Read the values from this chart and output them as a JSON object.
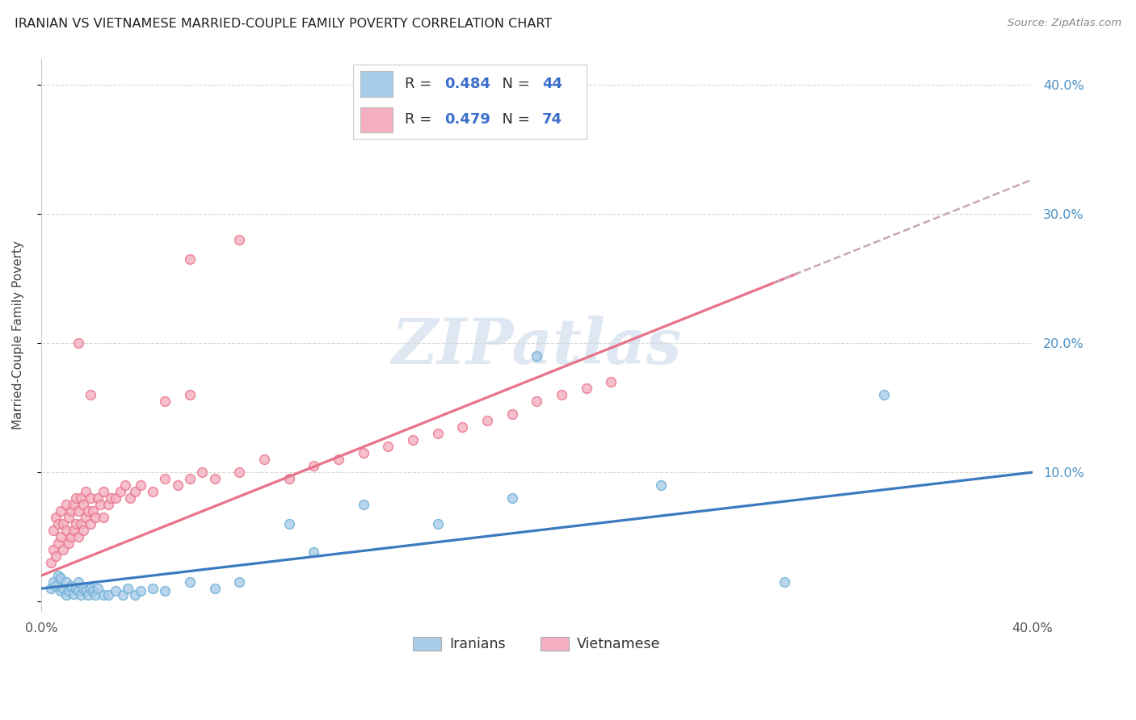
{
  "title": "IRANIAN VS VIETNAMESE MARRIED-COUPLE FAMILY POVERTY CORRELATION CHART",
  "source": "Source: ZipAtlas.com",
  "ylabel": "Married-Couple Family Poverty",
  "xlim": [
    0.0,
    0.4
  ],
  "ylim": [
    -0.008,
    0.42
  ],
  "right_ytick_values": [
    0.0,
    0.1,
    0.2,
    0.3,
    0.4
  ],
  "right_ytick_labels": [
    "",
    "10.0%",
    "20.0%",
    "30.0%",
    "40.0%"
  ],
  "xtick_values": [
    0.0,
    0.1,
    0.2,
    0.3,
    0.4
  ],
  "xtick_labels": [
    "0.0%",
    "",
    "",
    "",
    "40.0%"
  ],
  "iran_color_face": "#a8cce8",
  "iran_color_edge": "#6baed6",
  "iran_line_color": "#3a7abf",
  "viet_color_face": "#f4b0c0",
  "viet_color_edge": "#e8728a",
  "viet_line_color": "#e8728a",
  "viet_line_dashed_color": "#c8a8b8",
  "watermark_color": "#c8d8ea",
  "grid_color": "#d8d8d8",
  "background": "#ffffff",
  "iran_R": "0.484",
  "iran_N": "44",
  "viet_R": "0.479",
  "viet_N": "74",
  "legend_value_color": "#3a6fcc",
  "legend_label_color": "#333333",
  "iran_x": [
    0.004,
    0.005,
    0.006,
    0.007,
    0.008,
    0.008,
    0.009,
    0.01,
    0.01,
    0.011,
    0.012,
    0.013,
    0.014,
    0.015,
    0.015,
    0.016,
    0.017,
    0.018,
    0.019,
    0.02,
    0.021,
    0.022,
    0.023,
    0.025,
    0.027,
    0.03,
    0.033,
    0.035,
    0.038,
    0.04,
    0.045,
    0.05,
    0.06,
    0.07,
    0.08,
    0.1,
    0.11,
    0.13,
    0.16,
    0.19,
    0.2,
    0.25,
    0.3,
    0.34
  ],
  "iran_y": [
    0.01,
    0.015,
    0.012,
    0.02,
    0.008,
    0.018,
    0.01,
    0.005,
    0.015,
    0.008,
    0.012,
    0.006,
    0.01,
    0.008,
    0.015,
    0.005,
    0.01,
    0.008,
    0.005,
    0.01,
    0.008,
    0.005,
    0.01,
    0.005,
    0.005,
    0.008,
    0.005,
    0.01,
    0.005,
    0.008,
    0.01,
    0.008,
    0.015,
    0.01,
    0.015,
    0.06,
    0.038,
    0.075,
    0.06,
    0.08,
    0.19,
    0.09,
    0.015,
    0.16
  ],
  "viet_x": [
    0.004,
    0.005,
    0.005,
    0.006,
    0.006,
    0.007,
    0.007,
    0.008,
    0.008,
    0.009,
    0.009,
    0.01,
    0.01,
    0.011,
    0.011,
    0.012,
    0.012,
    0.013,
    0.013,
    0.014,
    0.014,
    0.015,
    0.015,
    0.016,
    0.016,
    0.017,
    0.017,
    0.018,
    0.018,
    0.019,
    0.02,
    0.02,
    0.021,
    0.022,
    0.023,
    0.024,
    0.025,
    0.025,
    0.027,
    0.028,
    0.03,
    0.032,
    0.034,
    0.036,
    0.038,
    0.04,
    0.045,
    0.05,
    0.055,
    0.06,
    0.065,
    0.07,
    0.08,
    0.09,
    0.1,
    0.11,
    0.12,
    0.13,
    0.14,
    0.15,
    0.16,
    0.17,
    0.18,
    0.19,
    0.2,
    0.21,
    0.22,
    0.23,
    0.05,
    0.06,
    0.015,
    0.02,
    0.06,
    0.08
  ],
  "viet_y": [
    0.03,
    0.04,
    0.055,
    0.035,
    0.065,
    0.045,
    0.06,
    0.05,
    0.07,
    0.04,
    0.06,
    0.055,
    0.075,
    0.045,
    0.065,
    0.05,
    0.07,
    0.055,
    0.075,
    0.06,
    0.08,
    0.05,
    0.07,
    0.06,
    0.08,
    0.055,
    0.075,
    0.065,
    0.085,
    0.07,
    0.06,
    0.08,
    0.07,
    0.065,
    0.08,
    0.075,
    0.065,
    0.085,
    0.075,
    0.08,
    0.08,
    0.085,
    0.09,
    0.08,
    0.085,
    0.09,
    0.085,
    0.095,
    0.09,
    0.095,
    0.1,
    0.095,
    0.1,
    0.11,
    0.095,
    0.105,
    0.11,
    0.115,
    0.12,
    0.125,
    0.13,
    0.135,
    0.14,
    0.145,
    0.155,
    0.16,
    0.165,
    0.17,
    0.155,
    0.16,
    0.2,
    0.16,
    0.265,
    0.28
  ]
}
